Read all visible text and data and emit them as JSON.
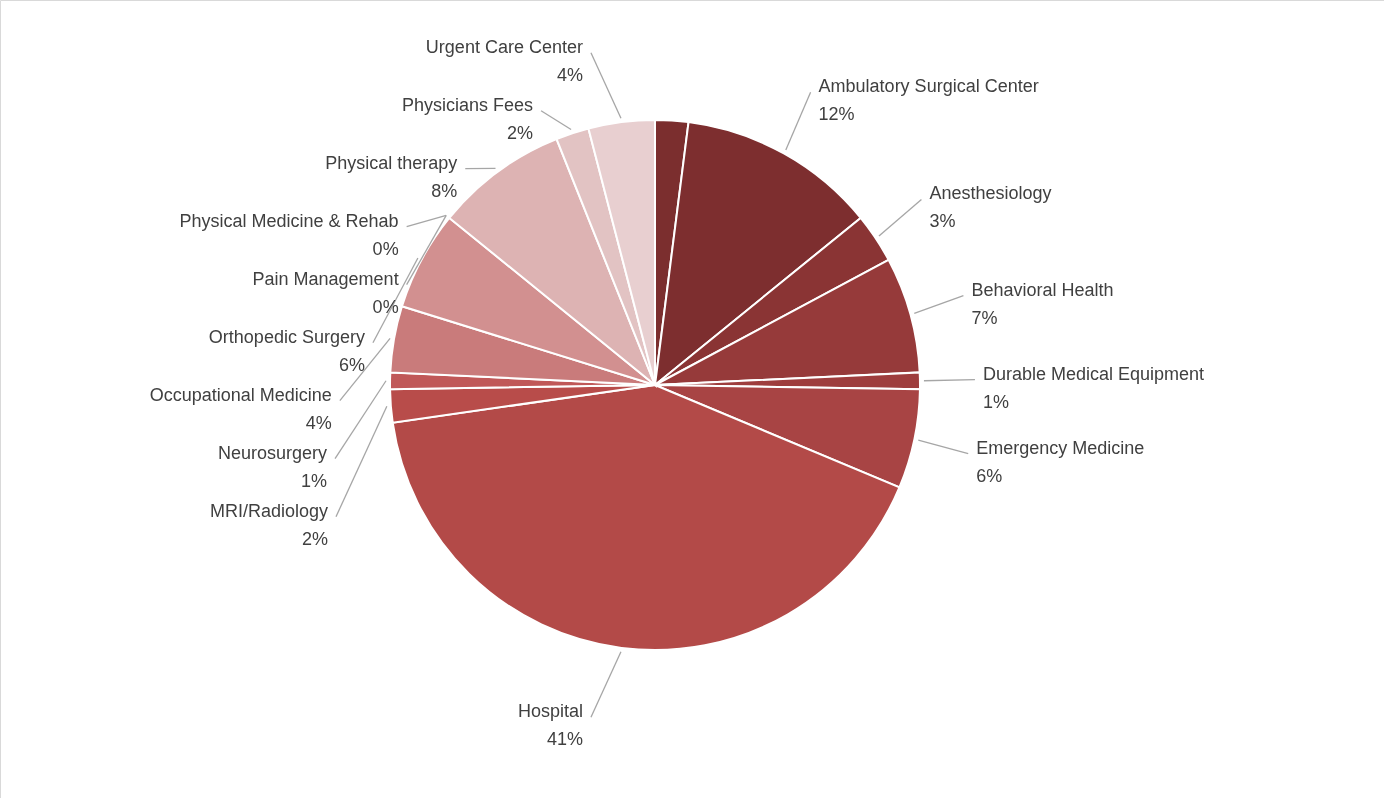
{
  "chart_data": {
    "type": "pie",
    "categories": [
      null,
      "Ambulatory Surgical Center",
      "Anesthesiology",
      "Behavioral Health",
      "Durable Medical Equipment",
      "Emergency Medicine",
      "Hospital",
      "MRI/Radiology",
      "Neurosurgery",
      "Occupational Medicine",
      "Orthopedic Surgery",
      "Pain Management",
      "Physical Medicine & Rehab",
      "Physical therapy",
      "Physicians Fees",
      "Urgent Care Center"
    ],
    "values": [
      2,
      12,
      3,
      7,
      1,
      6,
      41,
      2,
      1,
      4,
      6,
      0,
      0,
      8,
      2,
      4
    ],
    "value_labels": [
      null,
      "12%",
      "3%",
      "7%",
      "1%",
      "6%",
      "41%",
      "2%",
      "1%",
      "4%",
      "6%",
      "0%",
      "0%",
      "8%",
      "2%",
      "4%"
    ],
    "colors": [
      "#7b2e2e",
      "#7d2e2f",
      "#8a3434",
      "#963a3a",
      "#9e3d3d",
      "#a84444",
      "#b34a48",
      "#b84c4a",
      "#c05858",
      "#c97b7b",
      "#d29090",
      "#d79c9c",
      "#daa8a8",
      "#ddb3b3",
      "#e2c3c3",
      "#e8cfd0"
    ]
  }
}
